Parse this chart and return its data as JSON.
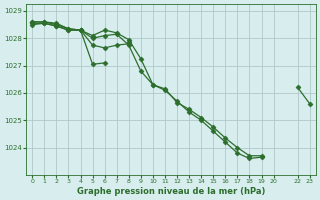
{
  "bg_color": "#d8eeee",
  "grid_color": "#b0c8c8",
  "line_color": "#2d6e2d",
  "marker_color": "#2d6e2d",
  "xlabel": "Graphe pression niveau de la mer (hPa)",
  "xlabel_color": "#2d6e2d",
  "ylabel_color": "#2d6e2d",
  "tick_color": "#2d6e2d",
  "series": [
    [
      1028.6,
      1028.6,
      1028.55,
      1028.35,
      1028.3,
      1028.1,
      1028.3,
      1028.2,
      1027.95,
      1027.25,
      1026.3,
      1026.15,
      1025.65,
      1025.4,
      1025.1,
      1024.75,
      1024.35,
      1024.0,
      1023.7,
      1023.7,
      null,
      null,
      1026.2,
      1025.6
    ],
    [
      1028.6,
      1028.6,
      1028.5,
      1028.35,
      1028.3,
      1028.0,
      1028.1,
      1028.15,
      1027.75,
      1026.8,
      1026.3,
      1026.1,
      1025.7,
      1025.3,
      1025.0,
      1024.6,
      1024.2,
      1023.8,
      1023.6,
      1023.65,
      null,
      null,
      null,
      null
    ],
    [
      1028.55,
      1028.55,
      1028.45,
      1028.3,
      1028.3,
      1027.05,
      1027.1,
      null,
      1027.85,
      null,
      null,
      null,
      null,
      null,
      null,
      null,
      null,
      null,
      null,
      null,
      null,
      null,
      null,
      null
    ],
    [
      1028.5,
      1028.55,
      1028.45,
      1028.3,
      1028.3,
      1027.75,
      1027.65,
      1027.75,
      1027.8,
      null,
      null,
      null,
      null,
      null,
      null,
      null,
      null,
      null,
      null,
      null,
      null,
      null,
      null,
      null
    ]
  ],
  "ylim": [
    1023.0,
    1029.25
  ],
  "yticks": [
    1024,
    1025,
    1026,
    1027,
    1028,
    1029
  ],
  "xtick_positions": [
    0,
    1,
    2,
    3,
    4,
    5,
    6,
    7,
    8,
    9,
    10,
    11,
    12,
    13,
    14,
    15,
    16,
    17,
    18,
    19,
    20,
    22,
    23
  ],
  "xtick_labels": [
    "0",
    "1",
    "2",
    "3",
    "4",
    "5",
    "6",
    "7",
    "8",
    "9",
    "10",
    "11",
    "12",
    "13",
    "14",
    "15",
    "16",
    "17",
    "18",
    "19",
    "20",
    "22",
    "23"
  ],
  "xlim": [
    -0.5,
    23.5
  ]
}
